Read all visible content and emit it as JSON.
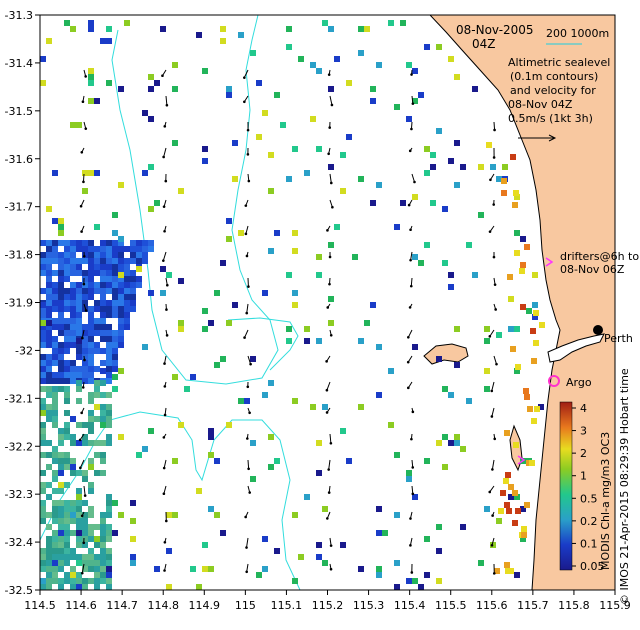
{
  "title": {
    "date": "08-Nov-2005",
    "hour": "04Z"
  },
  "scale": {
    "label": "200   1000m",
    "color": "#66cccc"
  },
  "legend_text": {
    "line1": "Altimetric sealevel",
    "line2": "(0.1m contours)",
    "line3": "and velocity for",
    "line4": "08-Nov 04Z",
    "line5": "0.5m/s (1kt 3h)"
  },
  "drifters": {
    "line1": "drifters@6h to",
    "line2": "08-Nov 06Z",
    "color": "#ff33ff"
  },
  "places": {
    "perth": "Perth",
    "argo": "Argo",
    "argo_color": "#ff33cc"
  },
  "credits": {
    "left": "MODIS Chl-a mg/m3 OC3",
    "right": "© IMOS 21-Apr-2015 08:29:39 Hobart time"
  },
  "colorbar": {
    "ticks": [
      "4",
      "3",
      "2",
      "1",
      "0.5",
      "0.2",
      "0.1",
      "0.05"
    ]
  },
  "axes": {
    "x_ticks": [
      "114.5",
      "114.6",
      "114.7",
      "114.8",
      "114.9",
      "115",
      "115.1",
      "115.2",
      "115.3",
      "115.4",
      "115.5",
      "115.6",
      "115.7",
      "115.8",
      "115.9"
    ],
    "y_ticks": [
      "-31.3",
      "-31.4",
      "-31.5",
      "-31.6",
      "-31.7",
      "-31.8",
      "-31.9",
      "-32",
      "-32.1",
      "-32.2",
      "-32.3",
      "-32.4",
      "-32.5"
    ],
    "x_range": [
      114.5,
      115.9
    ],
    "y_range": [
      -32.5,
      -31.3
    ]
  },
  "colors": {
    "land": "#f8c8a0",
    "contour": "#33dddd",
    "low_chl": "#1a3cc8",
    "mid_chl": "#2aa0c8",
    "high_chl": "#d2691e"
  }
}
